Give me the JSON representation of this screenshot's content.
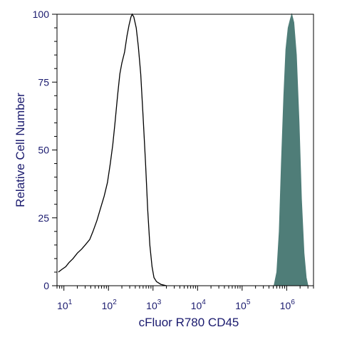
{
  "chart_data": {
    "type": "area",
    "xlabel": "cFluor R780 CD45",
    "ylabel": "Relative Cell Number",
    "x_scale": "log",
    "xlim": [
      7,
      4000000
    ],
    "ylim": [
      0,
      100
    ],
    "y_ticks": [
      0,
      25,
      50,
      75,
      100
    ],
    "x_ticks": [
      {
        "value": 10,
        "base": "10",
        "exp": "1"
      },
      {
        "value": 100,
        "base": "10",
        "exp": "2"
      },
      {
        "value": 1000,
        "base": "10",
        "exp": "3"
      },
      {
        "value": 10000,
        "base": "10",
        "exp": "4"
      },
      {
        "value": 100000,
        "base": "10",
        "exp": "5"
      },
      {
        "value": 1000000,
        "base": "10",
        "exp": "6"
      }
    ],
    "grid": false,
    "series": [
      {
        "style": "outline",
        "color": "#000000",
        "points": [
          [
            7.5,
            5
          ],
          [
            9,
            6
          ],
          [
            11,
            7
          ],
          [
            13,
            8.5
          ],
          [
            16,
            10
          ],
          [
            20,
            12
          ],
          [
            25,
            13.5
          ],
          [
            30,
            15
          ],
          [
            38,
            17
          ],
          [
            45,
            20
          ],
          [
            55,
            24
          ],
          [
            65,
            28
          ],
          [
            80,
            33
          ],
          [
            95,
            38
          ],
          [
            110,
            45
          ],
          [
            125,
            52
          ],
          [
            140,
            60
          ],
          [
            160,
            70
          ],
          [
            180,
            78
          ],
          [
            200,
            82
          ],
          [
            230,
            86
          ],
          [
            260,
            92
          ],
          [
            290,
            96
          ],
          [
            320,
            99
          ],
          [
            340,
            100
          ],
          [
            370,
            99
          ],
          [
            420,
            95
          ],
          [
            470,
            88
          ],
          [
            530,
            78
          ],
          [
            600,
            62
          ],
          [
            680,
            45
          ],
          [
            760,
            28
          ],
          [
            850,
            15
          ],
          [
            950,
            7
          ],
          [
            1050,
            3
          ],
          [
            1200,
            1.5
          ],
          [
            1500,
            0.5
          ],
          [
            2000,
            0
          ]
        ]
      },
      {
        "style": "filled",
        "color": "#4f7d78",
        "points": [
          [
            520000,
            0
          ],
          [
            600000,
            5
          ],
          [
            680000,
            20
          ],
          [
            760000,
            45
          ],
          [
            860000,
            70
          ],
          [
            960000,
            87
          ],
          [
            1080000,
            95
          ],
          [
            1200000,
            98
          ],
          [
            1300000,
            100
          ],
          [
            1450000,
            97
          ],
          [
            1650000,
            85
          ],
          [
            1900000,
            60
          ],
          [
            2150000,
            32
          ],
          [
            2450000,
            12
          ],
          [
            2750000,
            3
          ],
          [
            3000000,
            0
          ]
        ]
      }
    ]
  }
}
